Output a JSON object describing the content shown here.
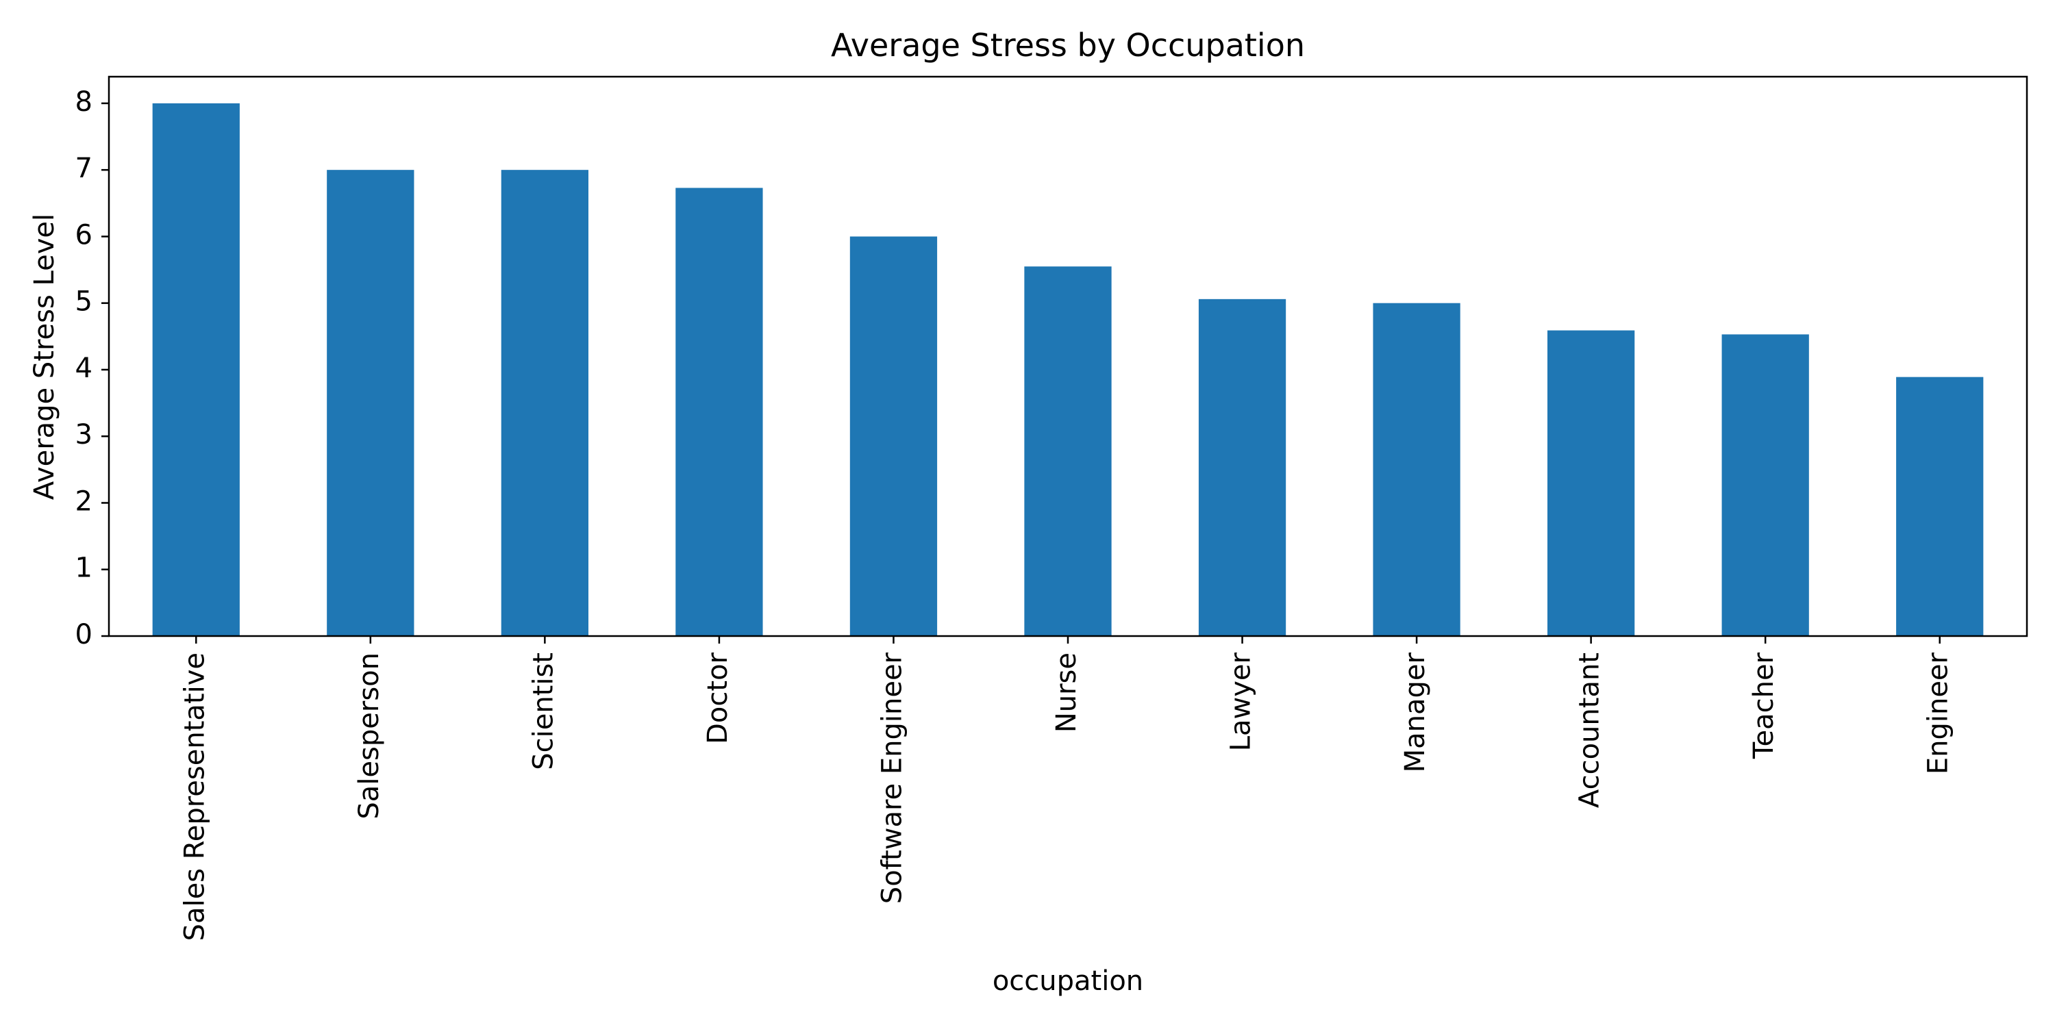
{
  "chart_data": {
    "type": "bar",
    "title": "Average Stress by Occupation",
    "xlabel": "occupation",
    "ylabel": "Average Stress Level",
    "categories": [
      "Sales Representative",
      "Salesperson",
      "Scientist",
      "Doctor",
      "Software Engineer",
      "Nurse",
      "Lawyer",
      "Manager",
      "Accountant",
      "Teacher",
      "Engineer"
    ],
    "values": [
      8.0,
      7.0,
      7.0,
      6.73,
      6.0,
      5.55,
      5.06,
      5.0,
      4.59,
      4.53,
      3.89
    ],
    "ylim": [
      0,
      8.4
    ],
    "yticks": [
      0,
      1,
      2,
      3,
      4,
      5,
      6,
      7,
      8
    ],
    "grid": false,
    "legend": "none",
    "bar_color": "#1f77b4"
  }
}
